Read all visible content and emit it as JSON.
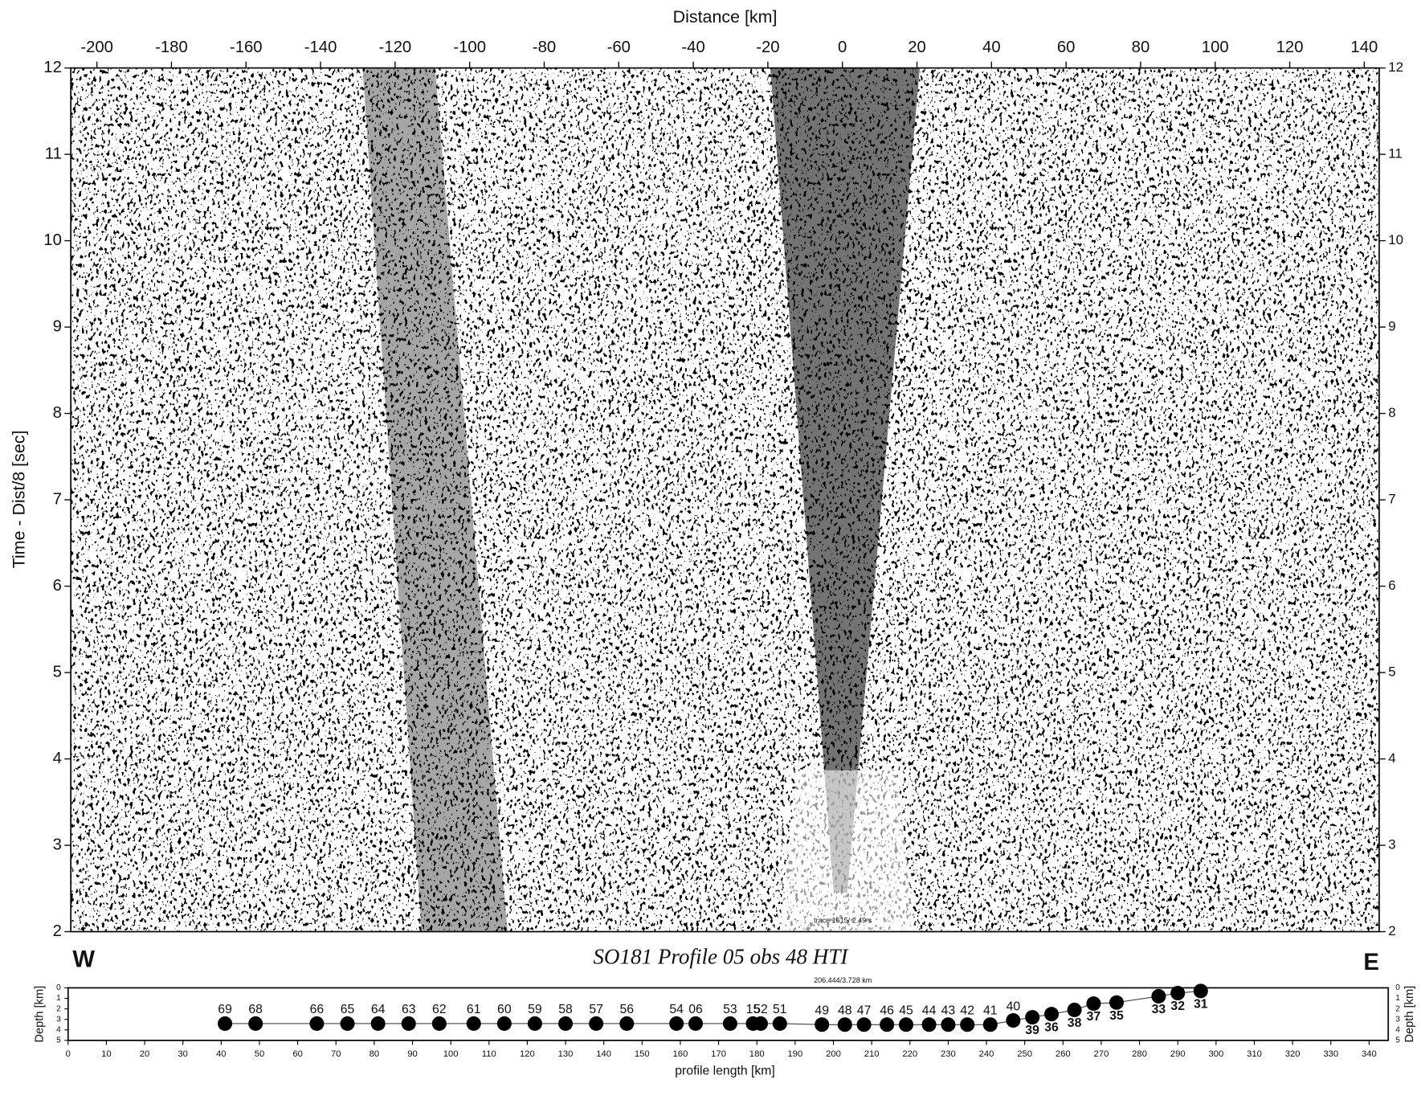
{
  "chart_data": [
    {
      "type": "seismic-section",
      "xlabel": "Distance [km]",
      "ylabel": "Time - Dist/8 [sec]",
      "xlim": [
        -207,
        144
      ],
      "xticks": [
        -200,
        -180,
        -160,
        -140,
        -120,
        -100,
        -80,
        -60,
        -40,
        -20,
        0,
        20,
        40,
        60,
        80,
        100,
        120,
        140
      ],
      "ylim": [
        2,
        12
      ],
      "yticks": [
        2,
        3,
        4,
        5,
        6,
        7,
        8,
        9,
        10,
        11,
        12
      ],
      "y2lim": [
        2,
        12
      ],
      "y2ticks": [
        2,
        3,
        4,
        5,
        6,
        7,
        8,
        9,
        10,
        11,
        12
      ],
      "west": "W",
      "east": "E",
      "title": "SO181 Profile 05 obs 48 HTI",
      "annotation": "trace 1615/ 2.49 s"
    },
    {
      "type": "scatter",
      "xlabel": "profile length [km]",
      "ylabel": "Depth [km]",
      "annotation": "206.444/3.728 km",
      "xlim": [
        0,
        345
      ],
      "xticks": [
        0,
        10,
        20,
        30,
        40,
        50,
        60,
        70,
        80,
        90,
        100,
        110,
        120,
        130,
        140,
        150,
        160,
        170,
        180,
        190,
        200,
        210,
        220,
        230,
        240,
        250,
        260,
        270,
        280,
        290,
        300,
        310,
        320,
        330,
        340
      ],
      "ylim": [
        5,
        0
      ],
      "yticks": [
        0,
        1,
        2,
        3,
        4,
        5
      ],
      "color": "#000000",
      "point_labels": [
        "69",
        "68",
        "66",
        "65",
        "64",
        "63",
        "62",
        "61",
        "60",
        "59",
        "58",
        "57",
        "56",
        "54",
        "06",
        "53",
        "15",
        "52",
        "51",
        "49",
        "48",
        "47",
        "46",
        "45",
        "44",
        "43",
        "42",
        "41",
        "40",
        "39",
        "36",
        "38",
        "37",
        "35",
        "33",
        "32",
        "31"
      ],
      "x": [
        41,
        49,
        65,
        73,
        81,
        89,
        97,
        106,
        114,
        122,
        130,
        138,
        146,
        159,
        164,
        173,
        179,
        181,
        186,
        197,
        203,
        208,
        214,
        219,
        225,
        230,
        235,
        241,
        247,
        252,
        257,
        263,
        268,
        274,
        285,
        290,
        296
      ],
      "values": [
        3.4,
        3.4,
        3.4,
        3.4,
        3.4,
        3.4,
        3.4,
        3.4,
        3.4,
        3.4,
        3.4,
        3.4,
        3.4,
        3.4,
        3.4,
        3.4,
        3.4,
        3.4,
        3.4,
        3.5,
        3.5,
        3.5,
        3.5,
        3.5,
        3.5,
        3.5,
        3.5,
        3.5,
        3.1,
        2.8,
        2.5,
        2.1,
        1.5,
        1.4,
        0.8,
        0.5,
        0.3
      ]
    }
  ]
}
